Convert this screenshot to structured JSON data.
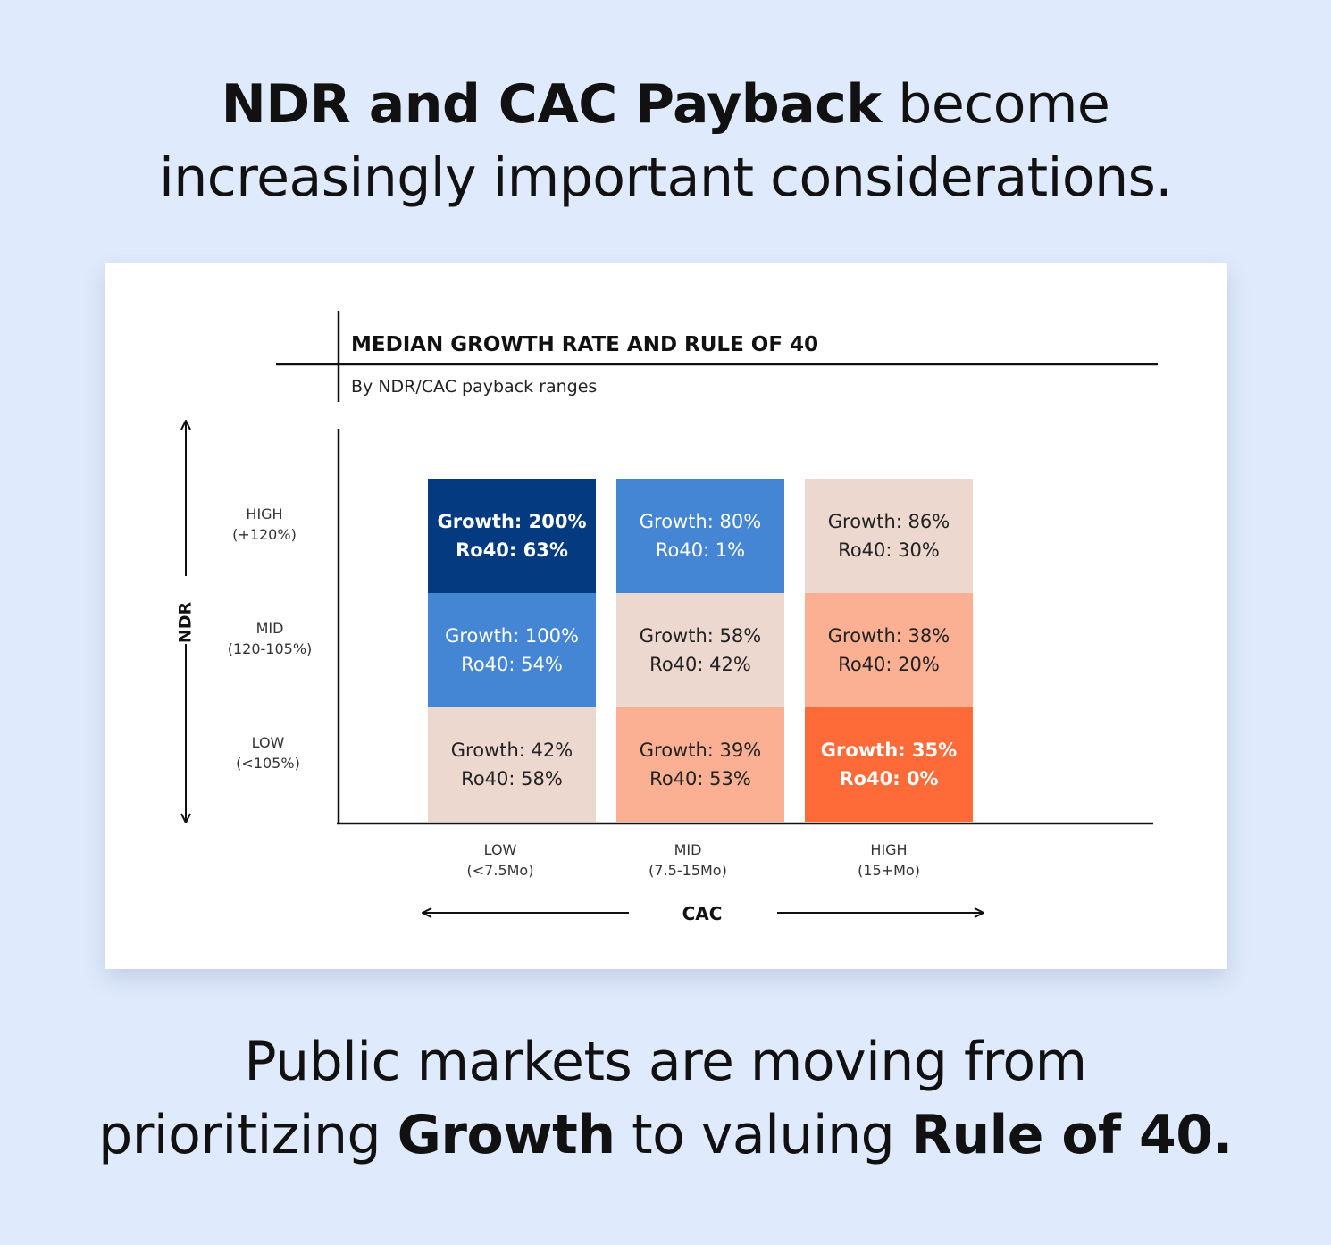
{
  "headline_top": {
    "bold": "NDR and CAC Payback",
    "rest": " become",
    "line2": "increasingly important considerations."
  },
  "headline_bottom": {
    "line1": "Public markets are moving from",
    "pre": "prioritizing ",
    "bold1": "Growth",
    "mid": " to valuing ",
    "bold2": "Rule of 40."
  },
  "chart_data": {
    "type": "heatmap",
    "title": "MEDIAN GROWTH RATE AND RULE OF 40",
    "subtitle": "By NDR/CAC payback ranges",
    "xlabel": "CAC",
    "ylabel": "NDR",
    "x_categories": [
      {
        "name": "LOW",
        "range": "(<7.5Mo)"
      },
      {
        "name": "MID",
        "range": "(7.5-15Mo)"
      },
      {
        "name": "HIGH",
        "range": "(15+Mo)"
      }
    ],
    "y_categories": [
      {
        "name": "HIGH",
        "range": "(+120%)"
      },
      {
        "name": "MID",
        "range": "(120-105%)"
      },
      {
        "name": "LOW",
        "range": "(<105%)"
      }
    ],
    "cells": [
      {
        "ndr": "HIGH",
        "cac": "LOW",
        "growth": "Growth: 200%",
        "ro40": "Ro40: 63%",
        "color": "#033a80",
        "text_color": "#ffffff",
        "bold": true
      },
      {
        "ndr": "HIGH",
        "cac": "MID",
        "growth": "Growth: 80%",
        "ro40": "Ro40: 1%",
        "color": "#4485d4",
        "text_color": "#ffffff",
        "bold": false
      },
      {
        "ndr": "HIGH",
        "cac": "HIGH",
        "growth": "Growth: 86%",
        "ro40": "Ro40: 30%",
        "color": "#edd8cf",
        "text_color": "#222222",
        "bold": false
      },
      {
        "ndr": "MID",
        "cac": "LOW",
        "growth": "Growth: 100%",
        "ro40": "Ro40: 54%",
        "color": "#4485d4",
        "text_color": "#ffffff",
        "bold": false
      },
      {
        "ndr": "MID",
        "cac": "MID",
        "growth": "Growth: 58%",
        "ro40": "Ro40: 42%",
        "color": "#edd8cf",
        "text_color": "#222222",
        "bold": false
      },
      {
        "ndr": "MID",
        "cac": "HIGH",
        "growth": "Growth: 38%",
        "ro40": "Ro40: 20%",
        "color": "#fbb094",
        "text_color": "#222222",
        "bold": false
      },
      {
        "ndr": "LOW",
        "cac": "LOW",
        "growth": "Growth: 42%",
        "ro40": "Ro40: 58%",
        "color": "#edd8cf",
        "text_color": "#222222",
        "bold": false
      },
      {
        "ndr": "LOW",
        "cac": "MID",
        "growth": "Growth: 39%",
        "ro40": "Ro40: 53%",
        "color": "#fbb094",
        "text_color": "#222222",
        "bold": false
      },
      {
        "ndr": "LOW",
        "cac": "HIGH",
        "growth": "Growth: 35%",
        "ro40": "Ro40: 0%",
        "color": "#ff6b38",
        "text_color": "#ffffff",
        "bold": true
      }
    ]
  }
}
